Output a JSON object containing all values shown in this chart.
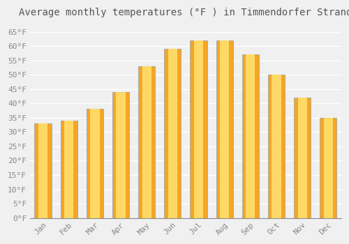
{
  "title": "Average monthly temperatures (°F ) in Timmendorfer Strand",
  "months": [
    "Jan",
    "Feb",
    "Mar",
    "Apr",
    "May",
    "Jun",
    "Jul",
    "Aug",
    "Sep",
    "Oct",
    "Nov",
    "Dec"
  ],
  "values": [
    33,
    34,
    38,
    44,
    53,
    59,
    62,
    62,
    57,
    50,
    42,
    35
  ],
  "bar_color_center": "#FFD966",
  "bar_color_edge": "#F5A623",
  "bar_border_color": "#AAAAAA",
  "ylim": [
    0,
    68
  ],
  "yticks": [
    0,
    5,
    10,
    15,
    20,
    25,
    30,
    35,
    40,
    45,
    50,
    55,
    60,
    65
  ],
  "ytick_labels": [
    "0°F",
    "5°F",
    "10°F",
    "15°F",
    "20°F",
    "25°F",
    "30°F",
    "35°F",
    "40°F",
    "45°F",
    "50°F",
    "55°F",
    "60°F",
    "65°F"
  ],
  "background_color": "#f0f0f0",
  "grid_color": "#ffffff",
  "title_fontsize": 10,
  "tick_fontsize": 8,
  "bar_width": 0.65
}
